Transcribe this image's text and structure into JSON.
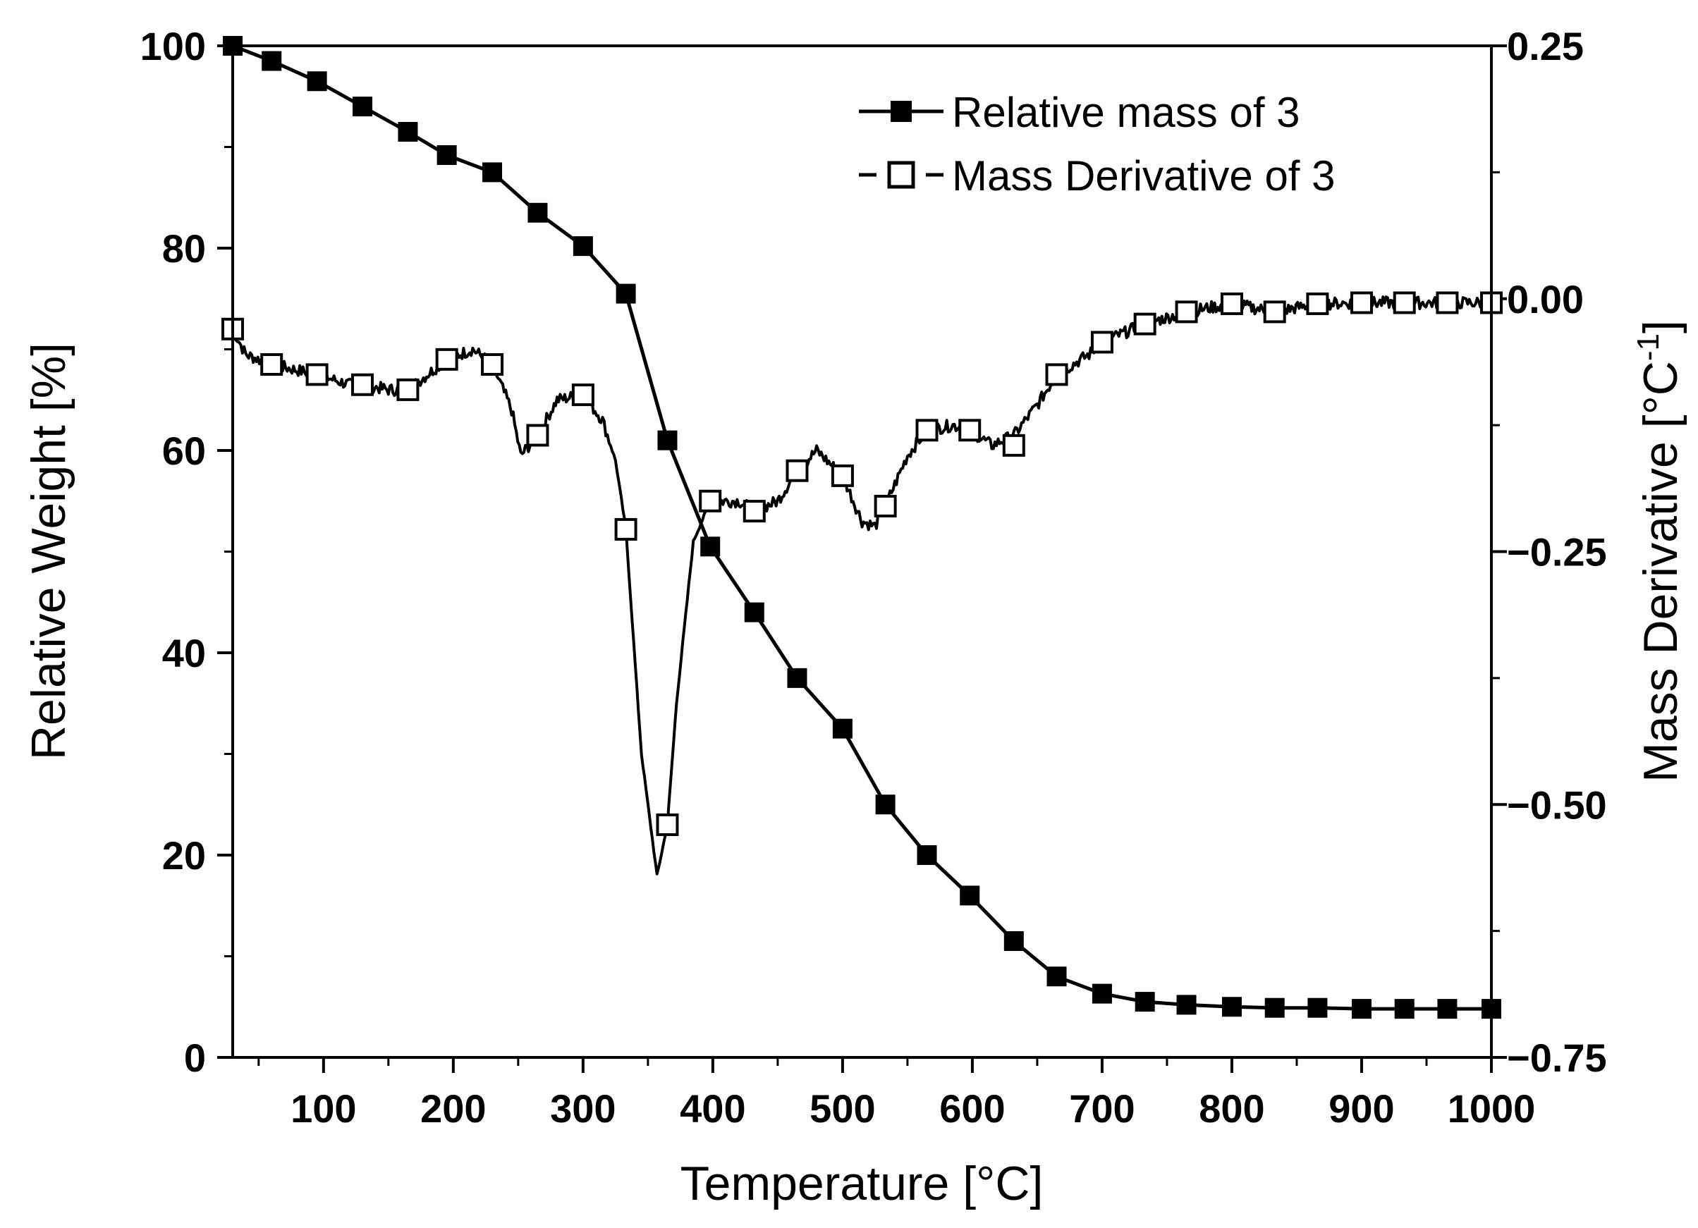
{
  "chart_data": {
    "type": "line",
    "title": "",
    "xlabel": "Temperature [°C]",
    "ylabel": "Relative Weight [%]",
    "y2label": "Mass Derivative [°C",
    "y2label_sup": "-1",
    "y2label_end": "]",
    "xlim": [
      30,
      1000
    ],
    "ylim": [
      0,
      100
    ],
    "y2lim": [
      -0.75,
      0.25
    ],
    "x_ticks": [
      100,
      200,
      300,
      400,
      500,
      600,
      700,
      800,
      900,
      1000
    ],
    "x_tick_labels": [
      "100",
      "200",
      "300",
      "400",
      "500",
      "600",
      "700",
      "800",
      "900",
      "1000"
    ],
    "y_ticks": [
      0,
      20,
      40,
      60,
      80,
      100
    ],
    "y_tick_labels": [
      "0",
      "20",
      "40",
      "60",
      "80",
      "100"
    ],
    "y2_ticks": [
      -0.75,
      -0.5,
      -0.25,
      0.0,
      0.25
    ],
    "y2_tick_labels": [
      "−0.75",
      "−0.50",
      "−0.25",
      "0.00",
      "0.25"
    ],
    "legend_position": "top-right",
    "series": [
      {
        "name": "Relative mass of 3",
        "axis": "left",
        "marker": "filled-square",
        "x": [
          30,
          60,
          95,
          130,
          165,
          195,
          230,
          265,
          300,
          333,
          365,
          398,
          432,
          465,
          500,
          533,
          565,
          598,
          632,
          665,
          700,
          733,
          765,
          800,
          833,
          866,
          900,
          933,
          966,
          1000
        ],
        "values": [
          100,
          98.5,
          96.5,
          94,
          91.5,
          89.2,
          87.5,
          83.5,
          80.2,
          75.5,
          61,
          50.5,
          44,
          37.5,
          32.5,
          25,
          20,
          16,
          11.5,
          8,
          6.3,
          5.5,
          5.2,
          5.0,
          4.9,
          4.9,
          4.8,
          4.8,
          4.8,
          4.8
        ]
      },
      {
        "name": "Mass Derivative of 3",
        "axis": "right",
        "marker": "open-square",
        "x": [
          30,
          40,
          60,
          95,
          120,
          130,
          150,
          165,
          195,
          215,
          230,
          245,
          252,
          265,
          280,
          300,
          315,
          325,
          333,
          345,
          357,
          365,
          372,
          385,
          398,
          420,
          432,
          450,
          465,
          480,
          500,
          515,
          525,
          533,
          550,
          565,
          585,
          598,
          615,
          632,
          650,
          665,
          690,
          700,
          733,
          765,
          800,
          833,
          866,
          900,
          933,
          966,
          1000
        ],
        "values": [
          -0.03,
          -0.055,
          -0.065,
          -0.075,
          -0.085,
          -0.085,
          -0.09,
          -0.09,
          -0.06,
          -0.05,
          -0.065,
          -0.11,
          -0.155,
          -0.135,
          -0.1,
          -0.095,
          -0.12,
          -0.16,
          -0.228,
          -0.45,
          -0.57,
          -0.52,
          -0.4,
          -0.24,
          -0.2,
          -0.2,
          -0.21,
          -0.2,
          -0.17,
          -0.15,
          -0.175,
          -0.22,
          -0.225,
          -0.205,
          -0.155,
          -0.13,
          -0.125,
          -0.13,
          -0.145,
          -0.135,
          -0.105,
          -0.075,
          -0.055,
          -0.043,
          -0.025,
          -0.013,
          -0.005,
          -0.013,
          -0.005,
          -0.004,
          -0.004,
          -0.004,
          -0.004
        ],
        "marker_x": [
          30,
          60,
          95,
          130,
          165,
          195,
          230,
          265,
          300,
          333,
          365,
          398,
          432,
          465,
          500,
          533,
          565,
          598,
          632,
          665,
          700,
          733,
          765,
          800,
          833,
          866,
          900,
          933,
          966,
          1000
        ],
        "marker_values": [
          -0.03,
          -0.065,
          -0.075,
          -0.085,
          -0.09,
          -0.06,
          -0.065,
          -0.135,
          -0.095,
          -0.228,
          -0.52,
          -0.2,
          -0.21,
          -0.17,
          -0.175,
          -0.205,
          -0.13,
          -0.13,
          -0.145,
          -0.075,
          -0.043,
          -0.025,
          -0.013,
          -0.005,
          -0.013,
          -0.005,
          -0.004,
          -0.004,
          -0.004,
          -0.004
        ]
      }
    ]
  }
}
